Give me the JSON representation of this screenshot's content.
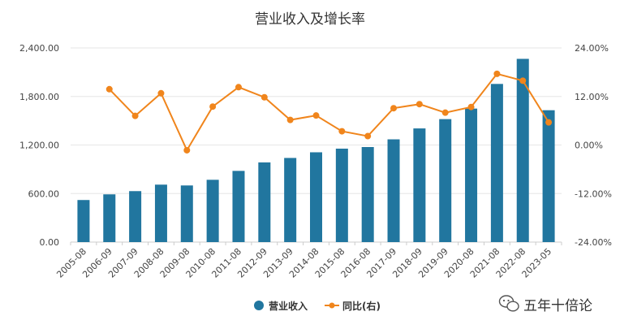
{
  "chart_data": {
    "type": "bar+line",
    "title": "营业收入及增长率",
    "categories": [
      "2005-08",
      "2006-09",
      "2007-09",
      "2008-08",
      "2009-08",
      "2010-08",
      "2011-08",
      "2012-09",
      "2013-09",
      "2014-08",
      "2015-08",
      "2016-08",
      "2017-09",
      "2018-09",
      "2019-09",
      "2020-08",
      "2021-08",
      "2022-08",
      "2023-05"
    ],
    "series": [
      {
        "name": "营业收入",
        "type": "bar",
        "axis": "left",
        "color": "#21769f",
        "values": [
          520,
          590,
          630,
          710,
          700,
          770,
          880,
          985,
          1040,
          1110,
          1155,
          1175,
          1270,
          1405,
          1520,
          1650,
          1955,
          2265,
          1630
        ]
      },
      {
        "name": "同比(右)",
        "type": "line",
        "axis": "right",
        "color": "#f0851c",
        "values": [
          null,
          13.8,
          7.2,
          12.8,
          -1.3,
          9.5,
          14.3,
          11.8,
          6.2,
          7.3,
          3.4,
          2.2,
          9.1,
          10.1,
          8.0,
          9.4,
          17.6,
          15.9,
          5.6
        ]
      }
    ],
    "y_left": {
      "ticks": [
        "0.00",
        "600.00",
        "1,200.00",
        "1,800.00",
        "2,400.00"
      ],
      "min": 0,
      "max": 2400
    },
    "y_right": {
      "ticks": [
        "-24.00%",
        "-12.00%",
        "0.00%",
        "12.00%",
        "24.00%"
      ],
      "min": -24,
      "max": 24
    },
    "grid": true,
    "legend_position": "bottom-center"
  },
  "legend": {
    "bar_label": "营业收入",
    "line_label": "同比(右)"
  },
  "watermark": {
    "text": "五年十倍论"
  }
}
